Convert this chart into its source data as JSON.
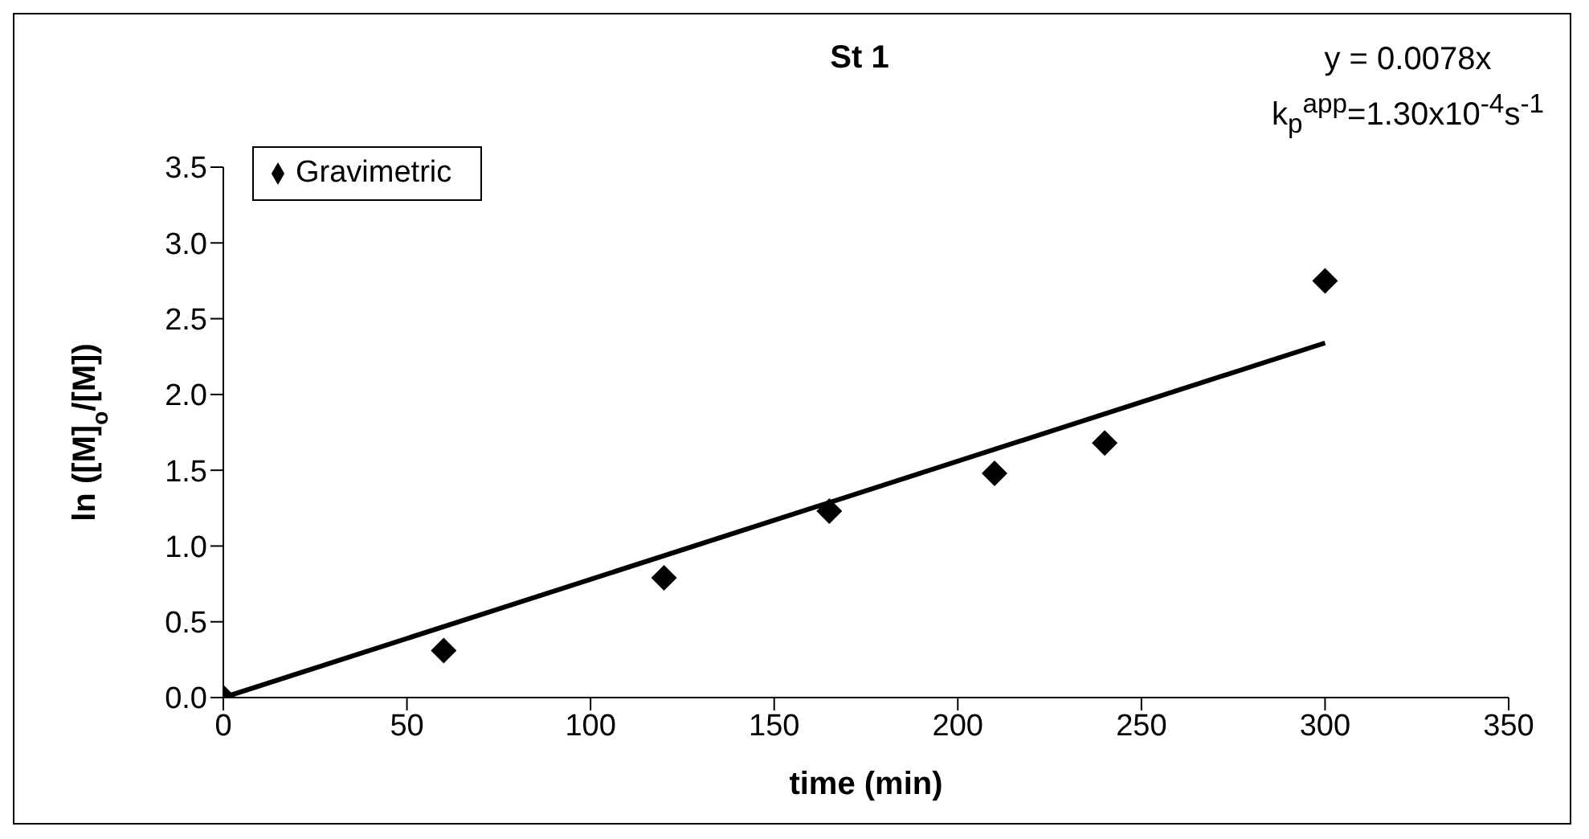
{
  "chart_data": {
    "type": "scatter",
    "title": "St 1",
    "xlabel": "time (min)",
    "ylabel": "ln ([M]$_{o}$/[M])",
    "annotations": [
      "y = 0.0078x",
      "k$_{p}$$^{app}$=1.30x10$^{-4}$s$^{-1}$"
    ],
    "series": [
      {
        "name": "Gravimetric",
        "marker": "diamond",
        "color": "#000000",
        "x": [
          0,
          60,
          120,
          165,
          210,
          240,
          300
        ],
        "values": [
          0,
          0.31,
          0.79,
          1.23,
          1.48,
          1.68,
          2.75
        ]
      },
      {
        "type": "line",
        "color": "#000000",
        "x": [
          0,
          300
        ],
        "values": [
          0,
          2.34
        ]
      }
    ],
    "line_style": "solid",
    "legend": "top left",
    "grid": false,
    "xlim": [
      0,
      350
    ],
    "xticks": [
      0,
      50,
      100,
      150,
      200,
      250,
      300,
      350
    ],
    "ylim": [
      0,
      3.5
    ],
    "yticks": [
      {
        "value": 0,
        "label": "0.0"
      },
      0.5,
      {
        "value": 1,
        "label": "1.0"
      },
      1.5,
      {
        "value": 2,
        "label": "2.0"
      },
      2.5,
      {
        "value": 3,
        "label": "3.0"
      },
      3.5
    ]
  }
}
